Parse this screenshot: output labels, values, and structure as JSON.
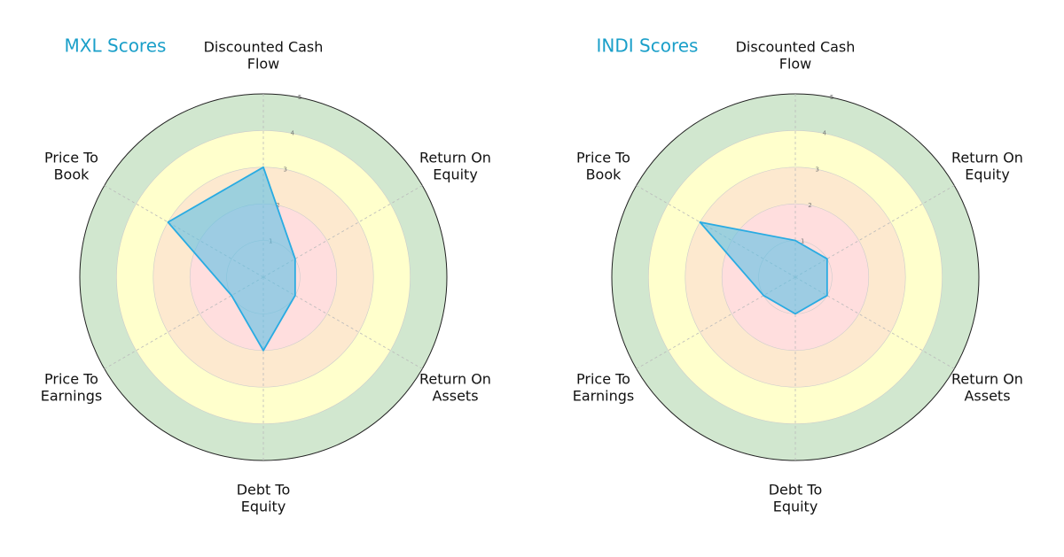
{
  "chart_data": [
    {
      "type": "radar",
      "title": "MXL Scores",
      "categories": [
        "Discounted Cash\nFlow",
        "Return On\nEquity",
        "Return On\nAssets",
        "Debt To\nEquity",
        "Price To\nEarnings",
        "Price To\nBook"
      ],
      "values": [
        3,
        1,
        1,
        2,
        1,
        3
      ],
      "color": "#29abe2",
      "rlim": [
        0,
        5
      ],
      "rticks": [
        1,
        2,
        3,
        4,
        5
      ]
    },
    {
      "type": "radar",
      "title": "INDI Scores",
      "categories": [
        "Discounted Cash\nFlow",
        "Return On\nEquity",
        "Return On\nAssets",
        "Debt To\nEquity",
        "Price To\nEarnings",
        "Price To\nBook"
      ],
      "values": [
        1,
        1,
        1,
        1,
        1,
        3
      ],
      "color": "#29abe2",
      "rlim": [
        0,
        5
      ],
      "rticks": [
        1,
        2,
        3,
        4,
        5
      ]
    }
  ]
}
